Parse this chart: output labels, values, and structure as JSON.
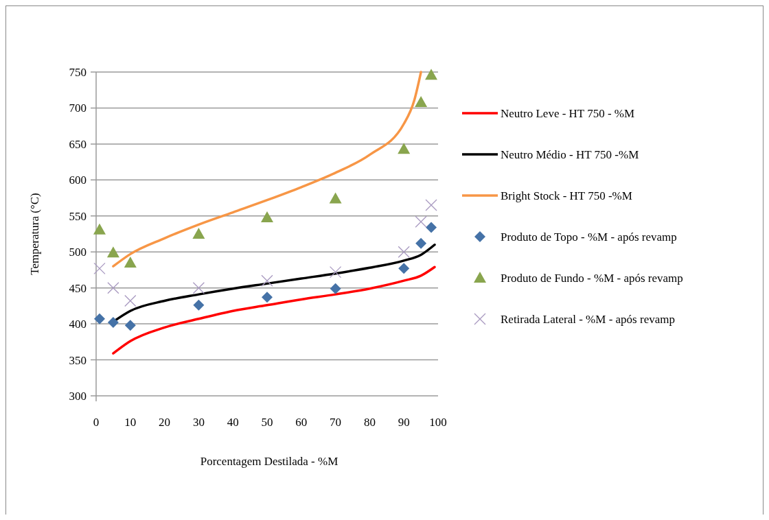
{
  "chart_data": {
    "type": "line",
    "xlabel": "Porcentagem Destilada  - %M",
    "ylabel": "Temperatura (°C)",
    "xlim": [
      0,
      100
    ],
    "xticks": [
      0,
      10,
      20,
      30,
      40,
      50,
      60,
      70,
      80,
      90,
      100
    ],
    "ylim": [
      300,
      750
    ],
    "yticks": [
      300,
      350,
      400,
      450,
      500,
      550,
      600,
      650,
      700,
      750
    ],
    "grid": "y",
    "legend": "right",
    "series": [
      {
        "name": "Neutro Leve - HT 750 - %M",
        "color": "#ff0000",
        "marker": "none",
        "x": [
          5,
          10,
          20,
          30,
          40,
          50,
          60,
          70,
          80,
          90,
          95,
          99
        ],
        "values": [
          359,
          376,
          395,
          407,
          418,
          426,
          434,
          441,
          449,
          460,
          467,
          479
        ]
      },
      {
        "name": "Neutro Médio - HT 750 -%M",
        "color": "#000000",
        "marker": "none",
        "x": [
          5,
          10,
          20,
          30,
          40,
          50,
          60,
          70,
          80,
          90,
          95,
          99
        ],
        "values": [
          403,
          418,
          432,
          441,
          449,
          456,
          463,
          470,
          478,
          488,
          496,
          510
        ]
      },
      {
        "name": "Bright Stock - HT 750 -%M",
        "color": "#f79646",
        "marker": "none",
        "x": [
          5,
          10,
          20,
          30,
          40,
          50,
          60,
          70,
          80,
          90,
          93,
          95
        ],
        "values": [
          480,
          497,
          519,
          538,
          555,
          572,
          590,
          610,
          635,
          678,
          710,
          750
        ]
      },
      {
        "name": "Produto de Topo - %M  - após revamp",
        "color": "#4572a7",
        "type": "scatter",
        "marker": "diamond",
        "x": [
          1,
          5,
          10,
          30,
          50,
          70,
          90,
          95,
          98
        ],
        "values": [
          407,
          402,
          398,
          426,
          437,
          449,
          477,
          512,
          534
        ]
      },
      {
        "name": "Produto de Fundo - %M  - após revamp",
        "color": "#89a54e",
        "type": "scatter",
        "marker": "triangle",
        "x": [
          1,
          5,
          10,
          30,
          50,
          70,
          90,
          95,
          98
        ],
        "values": [
          531,
          499,
          485,
          525,
          548,
          574,
          643,
          708,
          746
        ]
      },
      {
        "name": "Retirada Lateral - %M  - após revamp",
        "color": "#a899c0",
        "type": "scatter",
        "marker": "cross",
        "x": [
          1,
          5,
          10,
          30,
          50,
          70,
          90,
          95,
          98
        ],
        "values": [
          477,
          450,
          432,
          450,
          460,
          472,
          500,
          542,
          565
        ]
      }
    ]
  }
}
